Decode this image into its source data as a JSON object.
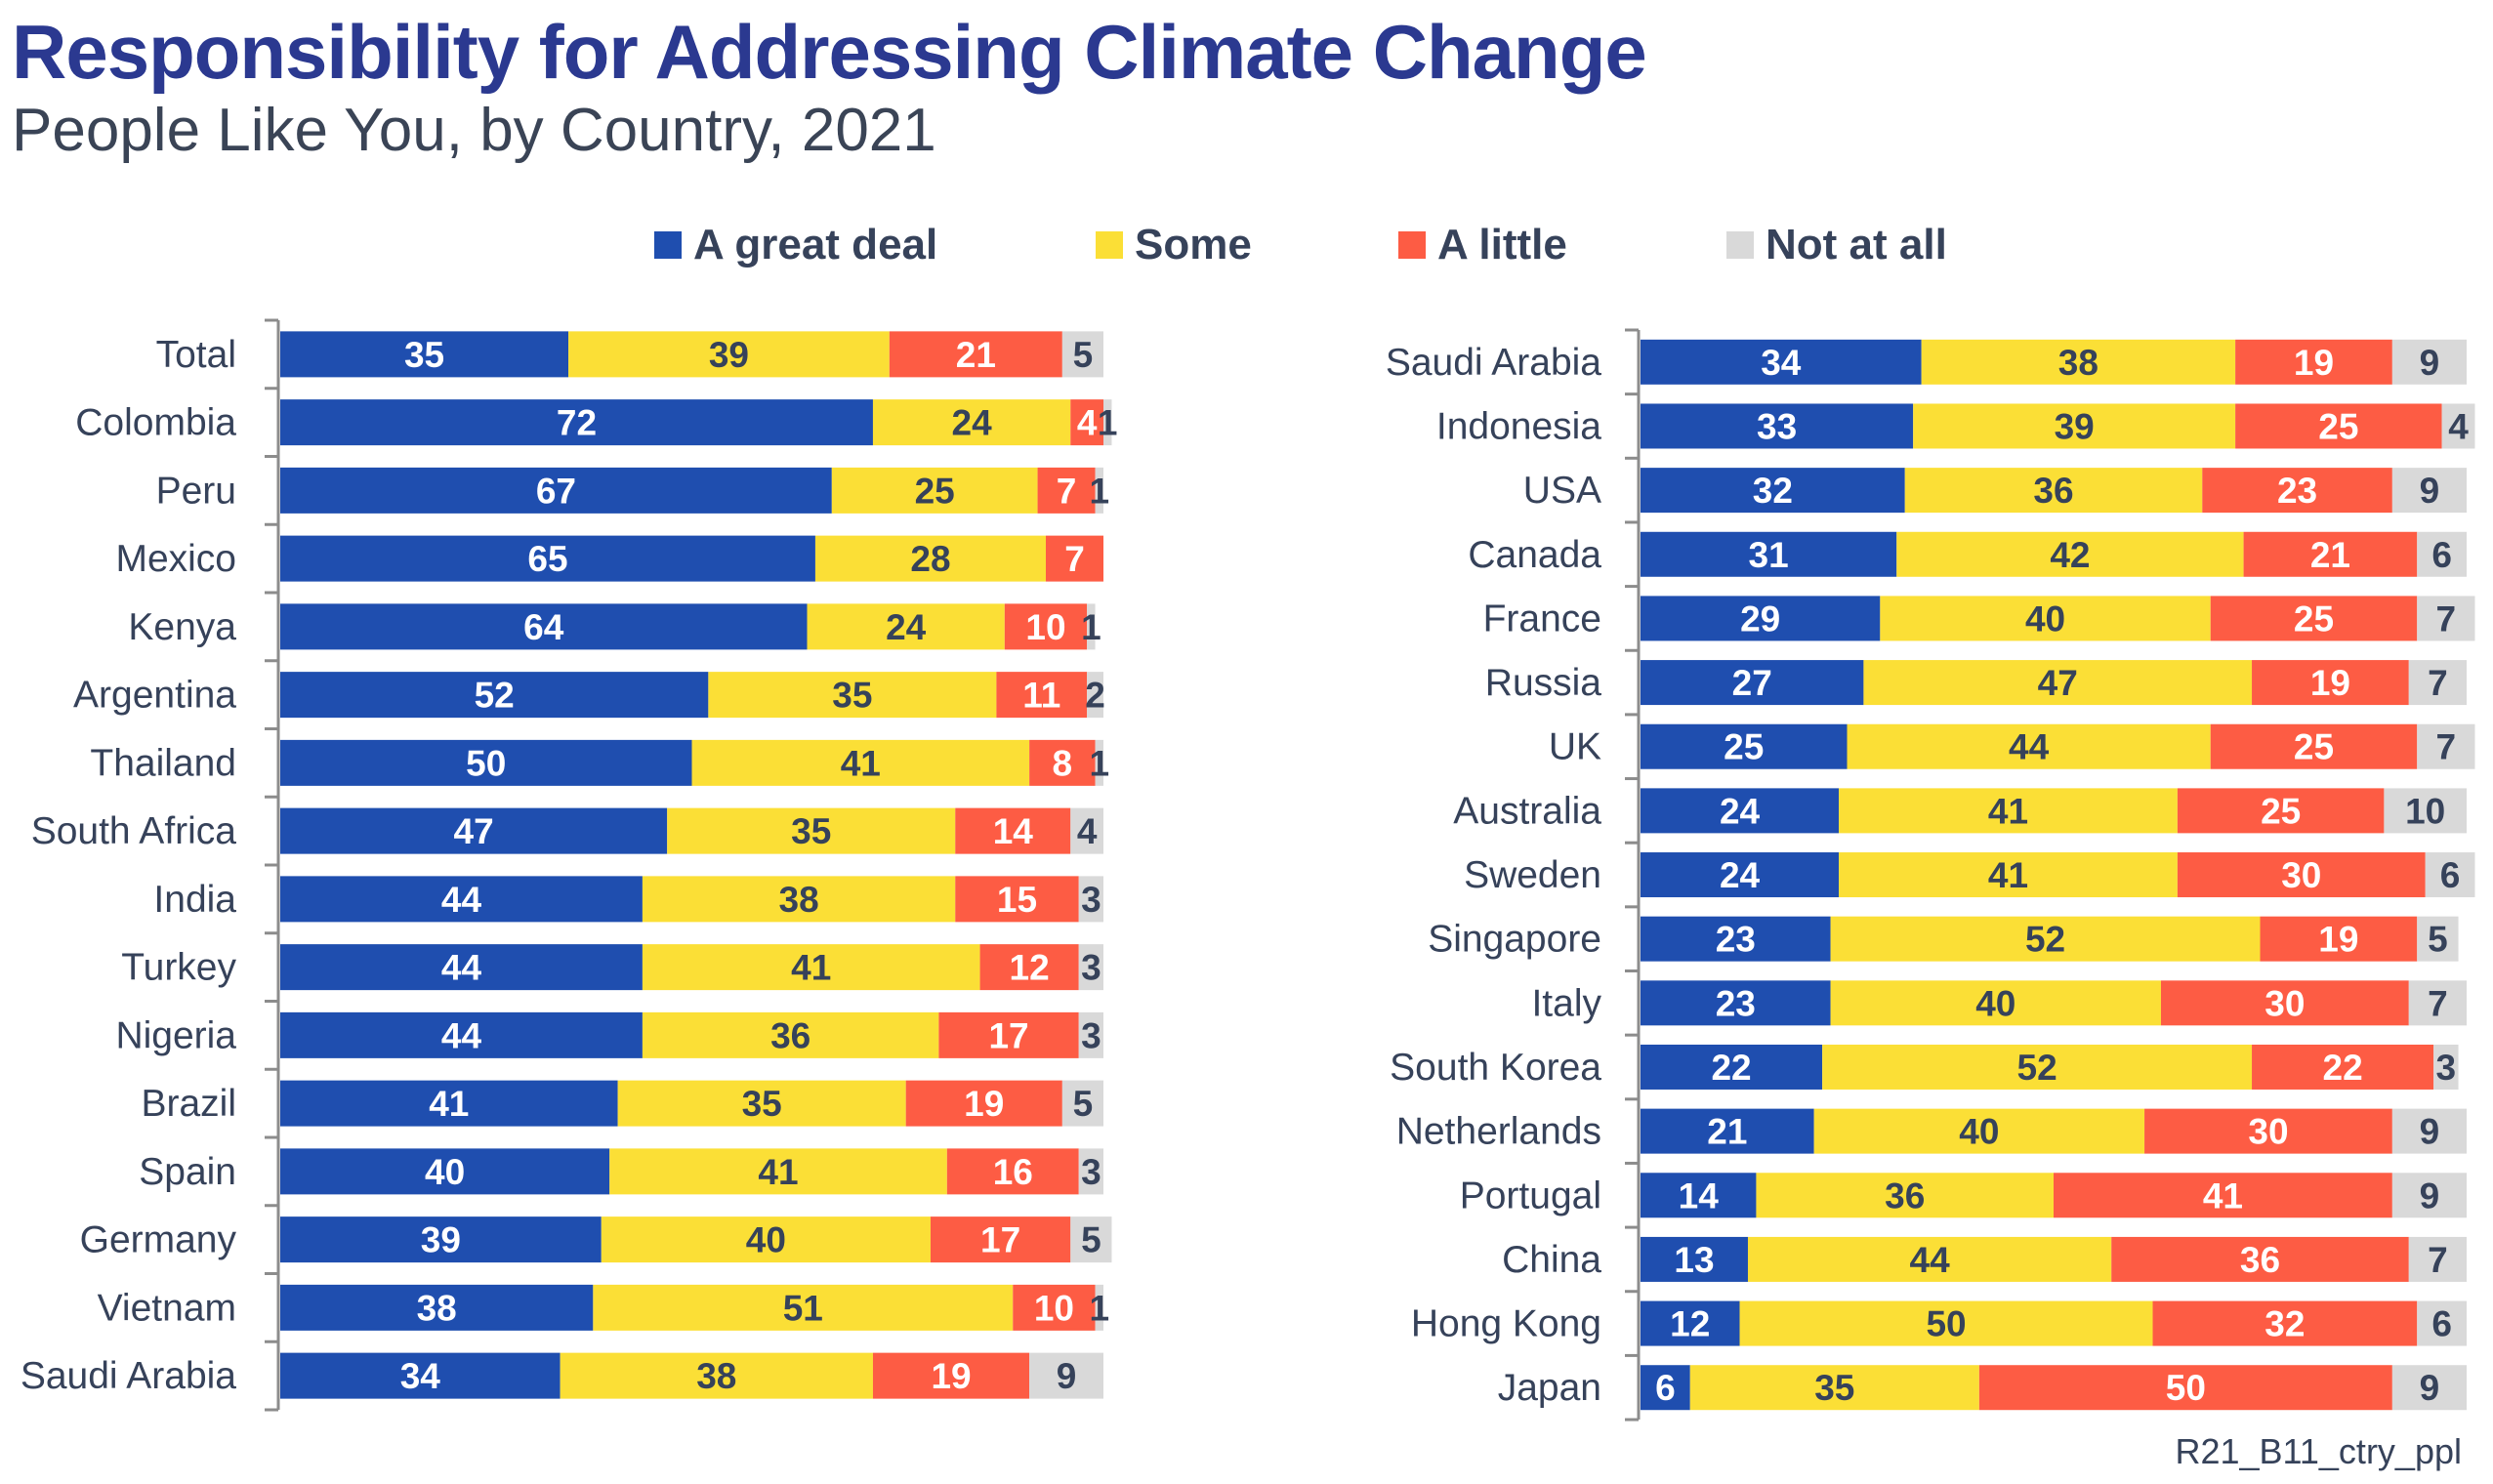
{
  "chart_data": [
    {
      "type": "bar",
      "orientation": "horizontal",
      "stacked": true,
      "title": "Responsibility for Addressing Climate Change",
      "subtitle": "People Like You, by Country, 2021",
      "xlim": [
        0,
        100
      ],
      "legend_position": "top-center",
      "categories": [
        "Total",
        "Colombia",
        "Peru",
        "Mexico",
        "Kenya",
        "Argentina",
        "Thailand",
        "South Africa",
        "India",
        "Turkey",
        "Nigeria",
        "Brazil",
        "Spain",
        "Germany",
        "Vietnam",
        "Saudi Arabia"
      ],
      "series": [
        {
          "name": "A great deal",
          "values": [
            35,
            72,
            67,
            65,
            64,
            52,
            50,
            47,
            44,
            44,
            44,
            41,
            40,
            39,
            38,
            34
          ]
        },
        {
          "name": "Some",
          "values": [
            39,
            24,
            25,
            28,
            24,
            35,
            41,
            35,
            38,
            41,
            36,
            35,
            41,
            40,
            51,
            38
          ]
        },
        {
          "name": "A little",
          "values": [
            21,
            4,
            7,
            7,
            10,
            11,
            8,
            14,
            15,
            12,
            17,
            19,
            16,
            17,
            10,
            19
          ]
        },
        {
          "name": "Not at all",
          "values": [
            5,
            1,
            1,
            0,
            1,
            2,
            1,
            4,
            3,
            3,
            3,
            5,
            3,
            5,
            1,
            9
          ]
        }
      ]
    },
    {
      "type": "bar",
      "orientation": "horizontal",
      "stacked": true,
      "xlim": [
        0,
        100
      ],
      "categories": [
        "Saudi Arabia",
        "Indonesia",
        "USA",
        "Canada",
        "France",
        "Russia",
        "UK",
        "Australia",
        "Sweden",
        "Singapore",
        "Italy",
        "South Korea",
        "Netherlands",
        "Portugal",
        "China",
        "Hong Kong",
        "Japan"
      ],
      "series": [
        {
          "name": "A great deal",
          "values": [
            34,
            33,
            32,
            31,
            29,
            27,
            25,
            24,
            24,
            23,
            23,
            22,
            21,
            14,
            13,
            12,
            6
          ]
        },
        {
          "name": "Some",
          "values": [
            38,
            39,
            36,
            42,
            40,
            47,
            44,
            41,
            41,
            52,
            40,
            52,
            40,
            36,
            44,
            50,
            35
          ]
        },
        {
          "name": "A little",
          "values": [
            19,
            25,
            23,
            21,
            25,
            19,
            25,
            25,
            30,
            19,
            30,
            22,
            30,
            41,
            36,
            32,
            50
          ]
        },
        {
          "name": "Not at all",
          "values": [
            9,
            4,
            9,
            6,
            7,
            7,
            7,
            10,
            6,
            5,
            7,
            3,
            9,
            9,
            7,
            6,
            9
          ]
        }
      ]
    }
  ],
  "header": {
    "title": "Responsibility for Addressing Climate Change",
    "subtitle": "People Like You, by Country, 2021"
  },
  "legend": [
    {
      "label": "A great deal",
      "color": "#1F4EAF"
    },
    {
      "label": "Some",
      "color": "#FBDF36"
    },
    {
      "label": "A little",
      "color": "#FD5C44"
    },
    {
      "label": "Not at all",
      "color": "#D9D9D9"
    }
  ],
  "label_colors": [
    "#FFFFFF",
    "#36425A",
    "#FFFFFF",
    "#36425A"
  ],
  "footer": {
    "code": "R21_B11_ctry_ppl"
  }
}
